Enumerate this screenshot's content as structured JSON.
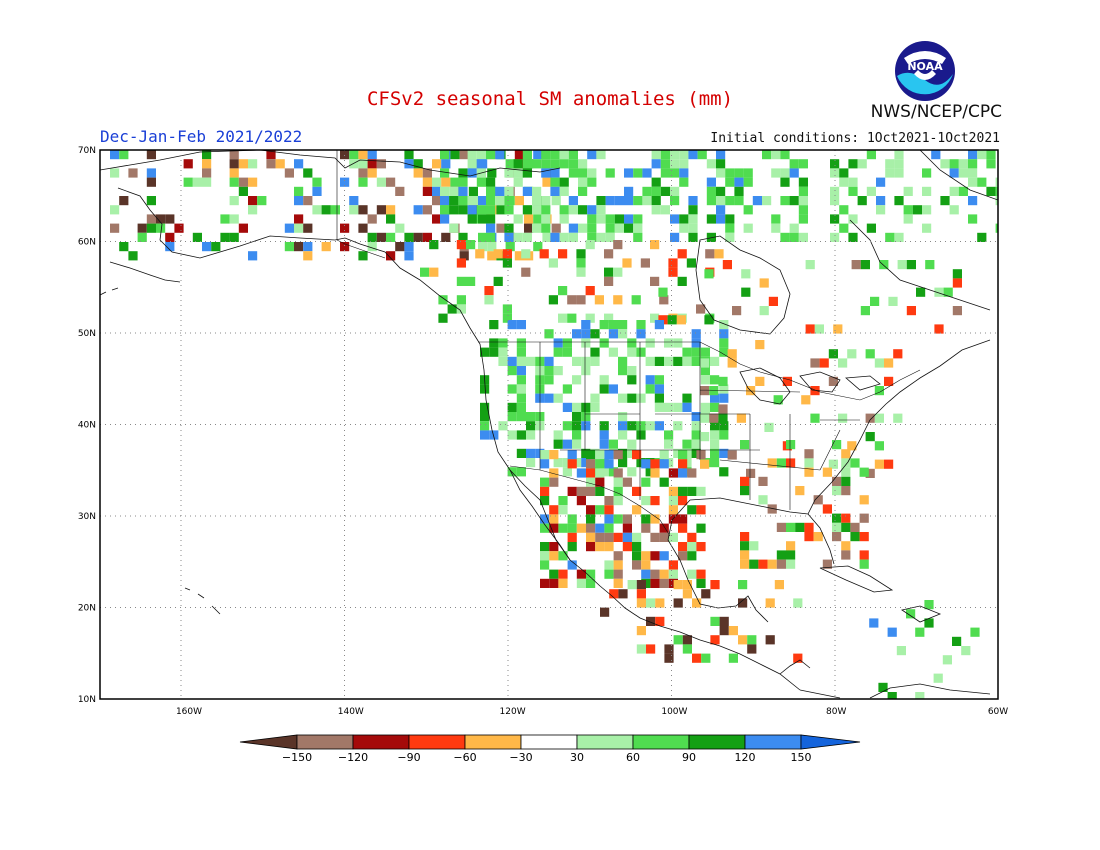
{
  "title": "CFSv2 seasonal SM anomalies (mm)",
  "season": "Dec-Jan-Feb 2021/2022",
  "init_conditions": "Initial conditions: 1Oct2021-1Oct2021",
  "agency": "NWS/NCEP/CPC",
  "logo": {
    "icon": "noaa-logo-icon",
    "text": "NOAA"
  },
  "map": {
    "lat_labels": [
      "70N",
      "60N",
      "50N",
      "40N",
      "30N",
      "20N",
      "10N"
    ],
    "lon_labels": [
      "160W",
      "140W",
      "120W",
      "100W",
      "80W",
      "60W"
    ],
    "lat_range": [
      10,
      70
    ],
    "lon_range": [
      -171,
      -60
    ]
  },
  "legend": {
    "ticks": [
      "-150",
      "-120",
      "-90",
      "-60",
      "-30",
      "30",
      "60",
      "90",
      "120",
      "150"
    ],
    "colors": [
      "#5a3428",
      "#a27868",
      "#a50a0a",
      "#ff3a10",
      "#ffb848",
      "#ffffff",
      "#a8f0a8",
      "#50dc50",
      "#14a014",
      "#3c8cf0",
      "#1464dc"
    ]
  }
}
